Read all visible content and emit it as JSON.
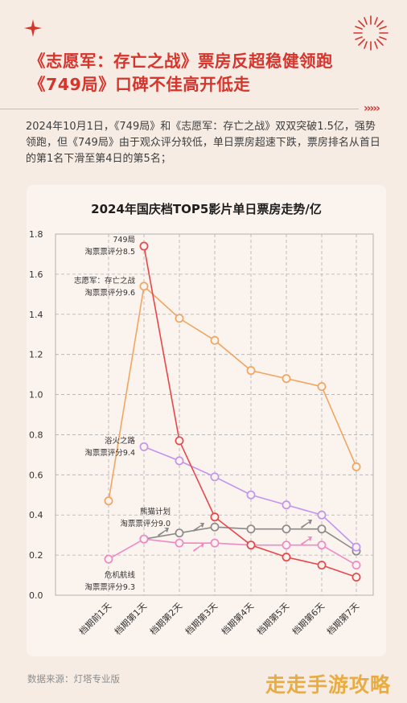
{
  "headline": {
    "line1": "《志愿军：存亡之战》票房反超稳健领跑",
    "line2": "《749局》口碑不佳高开低走"
  },
  "intro_text": "2024年10月1日，《749局》和《志愿军：存亡之战》双双突破1.5亿，强势领跑，但《749局》由于观众评分较低，单日票房超速下跌，票房排名从首日的第1名下滑至第4日的第5名；",
  "chart_title": "2024年国庆档TOP5影片单日票房走势/亿",
  "source": "数据来源：灯塔专业版",
  "watermark": "走走手游攻略",
  "colors": {
    "accent": "#d7342c",
    "film749": "#e8474a",
    "zhiyuanjun": "#f0a661",
    "yuhuo": "#c393f0",
    "xiongmao": "#8a8a8a",
    "weiji": "#ef89c5",
    "grid": "#b0b0b0"
  },
  "chart_data": {
    "type": "line",
    "title": "2024年国庆档TOP5影片单日票房走势/亿",
    "categories": [
      "档期前1天",
      "档期第1天",
      "档期第2天",
      "档期第3天",
      "档期第4天",
      "档期第5天",
      "档期第6天",
      "档期第7天"
    ],
    "yticks": [
      "0.0",
      "0.2",
      "0.4",
      "0.6",
      "0.8",
      "1.0",
      "1.2",
      "1.4",
      "1.6",
      "1.8"
    ],
    "ylim": [
      0,
      1.8
    ],
    "grid": true,
    "series": [
      {
        "key": "film749",
        "label_lines": [
          "749局",
          "淘票票评分8.5"
        ],
        "values": [
          null,
          1.74,
          0.77,
          0.39,
          0.25,
          0.19,
          0.15,
          0.09
        ]
      },
      {
        "key": "zhiyuanjun",
        "label_lines": [
          "志愿军：存亡之战",
          "淘票票评分9.6"
        ],
        "values": [
          0.47,
          1.54,
          1.38,
          1.27,
          1.12,
          1.08,
          1.04,
          0.64
        ]
      },
      {
        "key": "yuhuo",
        "label_lines": [
          "浴火之路",
          "淘票票评分9.4"
        ],
        "values": [
          null,
          0.74,
          0.67,
          0.59,
          0.5,
          0.45,
          0.4,
          0.24
        ]
      },
      {
        "key": "xiongmao",
        "label_lines": [
          "熊猫计划",
          "淘票票评分9.0"
        ],
        "values": [
          null,
          0.28,
          0.31,
          0.34,
          0.33,
          0.33,
          0.33,
          0.22
        ]
      },
      {
        "key": "weiji",
        "label_lines": [
          "危机航线",
          "淘票票评分9.3"
        ],
        "values": [
          0.18,
          0.28,
          0.26,
          0.26,
          0.25,
          0.25,
          0.25,
          0.15
        ]
      }
    ]
  }
}
